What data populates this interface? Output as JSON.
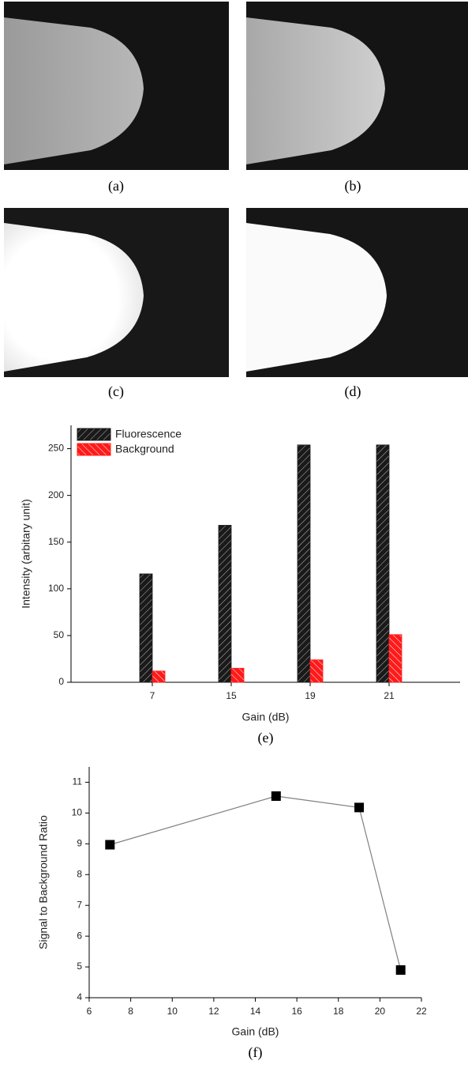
{
  "image_labels": [
    "(a)",
    "(b)",
    "(c)",
    "(d)"
  ],
  "chart_data": [
    {
      "type": "bar",
      "caption": "(e)",
      "xlabel": "Gain (dB)",
      "ylabel": "Intensity (arbitary unit)",
      "categories": [
        "7",
        "15",
        "19",
        "21"
      ],
      "series": [
        {
          "name": "Fluorescence",
          "color": "#1a1a1a",
          "values": [
            116,
            168,
            254,
            254
          ]
        },
        {
          "name": "Background",
          "color": "#ff1a1a",
          "values": [
            12,
            15,
            24,
            51
          ]
        }
      ],
      "ylim": [
        0,
        275
      ],
      "yticks": [
        0,
        50,
        100,
        150,
        200,
        250
      ],
      "legend": "upper left"
    },
    {
      "type": "line",
      "caption": "(f)",
      "xlabel": "Gain (dB)",
      "ylabel": "Signal to Background Ratio",
      "x": [
        7,
        15,
        19,
        21
      ],
      "values": [
        8.97,
        10.55,
        10.18,
        4.9
      ],
      "color": "#000000",
      "line_color": "#808080",
      "xlim": [
        6,
        22
      ],
      "xticks": [
        6,
        8,
        10,
        12,
        14,
        16,
        18,
        20,
        22
      ],
      "ylim": [
        4,
        11.5
      ],
      "yticks": [
        4,
        5,
        6,
        7,
        8,
        9,
        10,
        11
      ]
    }
  ]
}
